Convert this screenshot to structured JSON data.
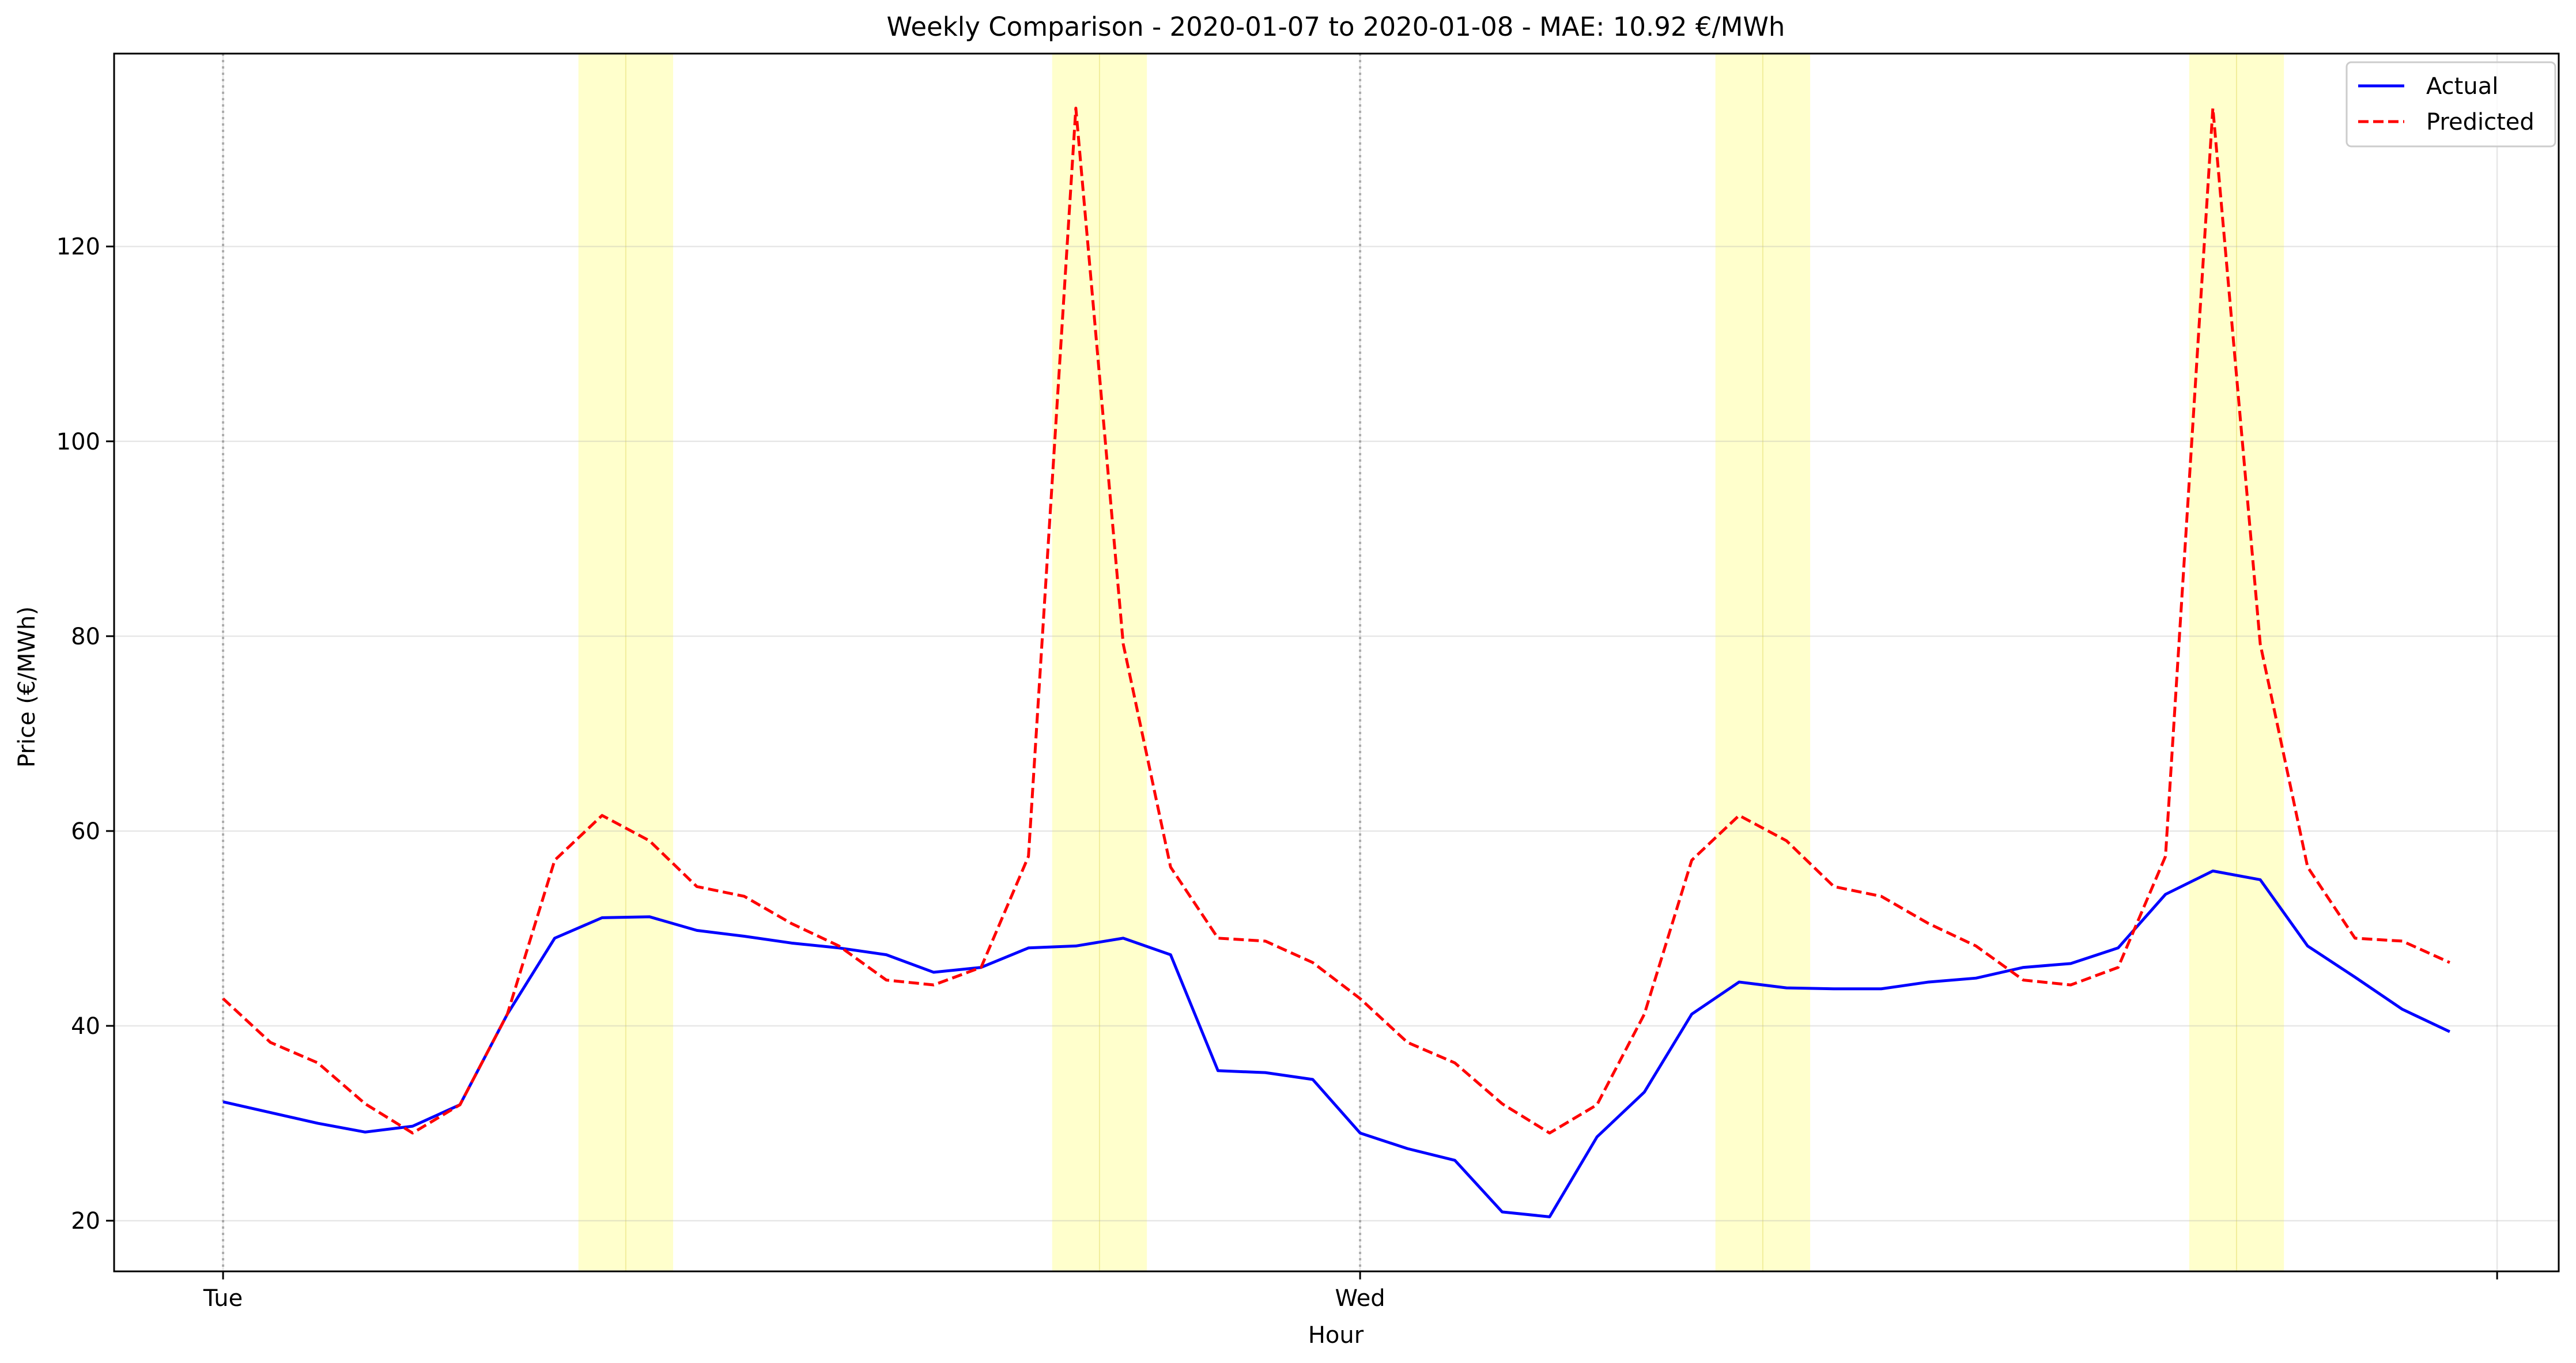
{
  "chart_data": {
    "type": "line",
    "title": "Weekly Comparison - 2020-01-07 to 2020-01-08 - MAE: 10.92 €/MWh",
    "xlabel": "Hour",
    "ylabel": "Price (€/MWh)",
    "ylim": [
      14.8,
      139.8
    ],
    "xlim": [
      -2.3,
      49.3
    ],
    "x": [
      0,
      1,
      2,
      3,
      4,
      5,
      6,
      7,
      8,
      9,
      10,
      11,
      12,
      13,
      14,
      15,
      16,
      17,
      18,
      19,
      20,
      21,
      22,
      23,
      24,
      25,
      26,
      27,
      28,
      29,
      30,
      31,
      32,
      33,
      34,
      35,
      36,
      37,
      38,
      39,
      40,
      41,
      42,
      43,
      44,
      45,
      46,
      47
    ],
    "yticks": [
      20,
      40,
      60,
      80,
      100,
      120
    ],
    "xticks": [
      {
        "x": 0,
        "label": "Tue"
      },
      {
        "x": 24,
        "label": "Wed"
      },
      {
        "x": 48,
        "label": ""
      }
    ],
    "day_dividers": [
      0,
      24
    ],
    "highlight_bands": [
      [
        7.5,
        9.5
      ],
      [
        17.5,
        19.5
      ],
      [
        31.5,
        33.5
      ],
      [
        41.5,
        43.5
      ]
    ],
    "grid": true,
    "legend": "top-right",
    "series": [
      {
        "name": "Actual",
        "color": "#0000ff",
        "style": "solid",
        "values": [
          32.2,
          31.1,
          30.0,
          29.1,
          29.7,
          31.9,
          41.2,
          49.0,
          51.1,
          51.2,
          49.8,
          49.2,
          48.5,
          48.0,
          47.3,
          45.5,
          46.0,
          48.0,
          48.2,
          49.0,
          47.3,
          35.4,
          35.2,
          34.5,
          29.0,
          27.4,
          26.2,
          20.9,
          20.4,
          28.6,
          33.2,
          41.2,
          44.5,
          43.9,
          43.8,
          43.8,
          44.5,
          44.9,
          46.0,
          46.4,
          48.0,
          53.5,
          55.9,
          55.0,
          48.2,
          45.0,
          41.7,
          39.4
        ]
      },
      {
        "name": "Predicted",
        "color": "#ff0000",
        "style": "dashed",
        "values": [
          42.8,
          38.3,
          36.2,
          32.0,
          29.0,
          31.9,
          41.2,
          57.0,
          61.6,
          59.0,
          54.3,
          53.3,
          50.5,
          48.2,
          44.7,
          44.2,
          46.0,
          57.4,
          134.2,
          79.2,
          56.3,
          49.0,
          48.7,
          46.5,
          42.8,
          38.3,
          36.2,
          32.0,
          29.0,
          31.9,
          41.2,
          57.0,
          61.6,
          59.0,
          54.3,
          53.3,
          50.5,
          48.2,
          44.7,
          44.2,
          46.0,
          57.4,
          134.2,
          79.2,
          56.3,
          49.0,
          48.7,
          46.5
        ]
      }
    ]
  }
}
